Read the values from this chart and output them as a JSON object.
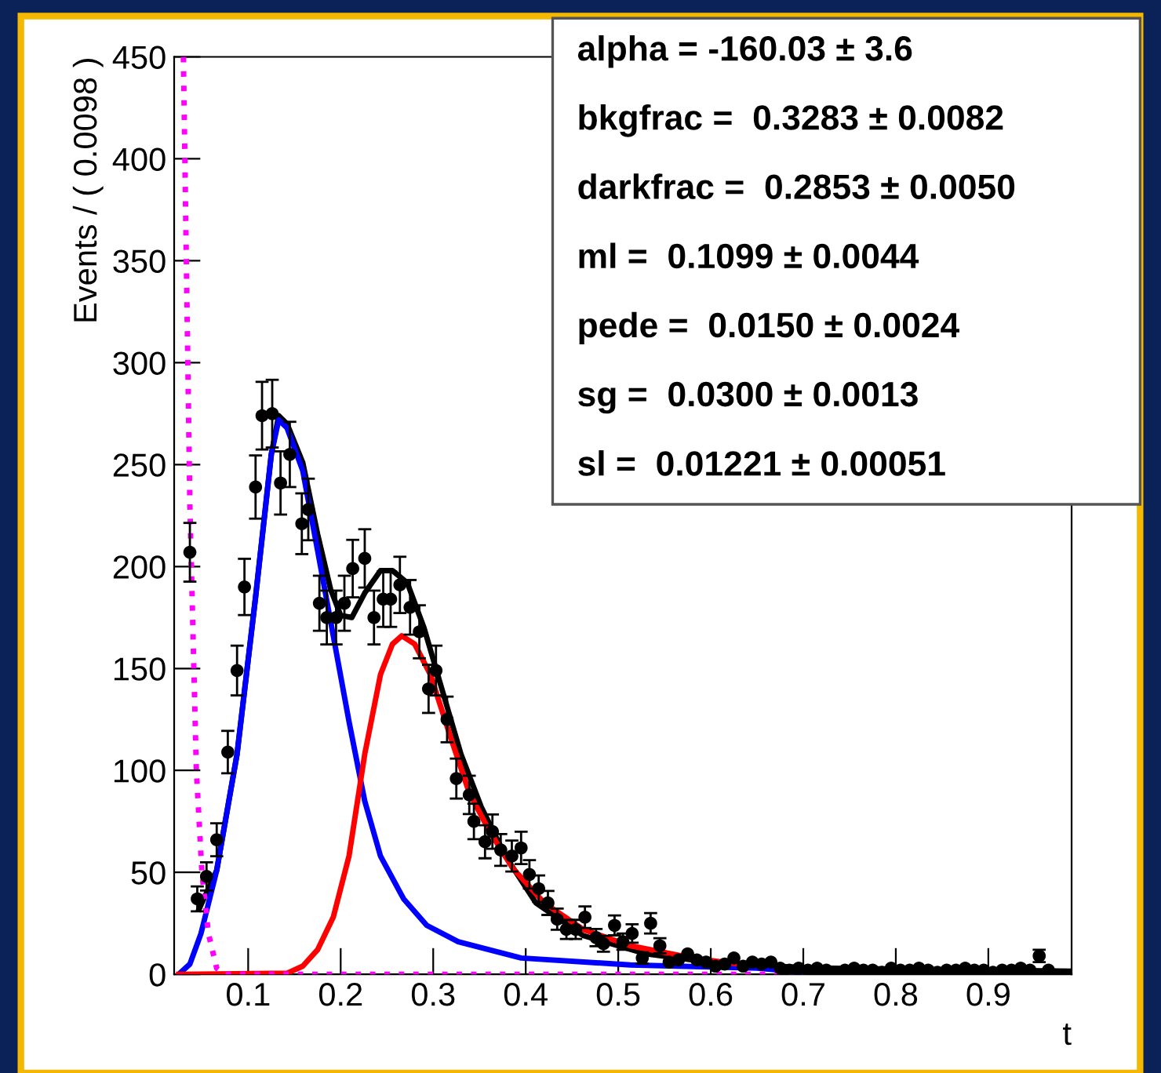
{
  "chart_data": {
    "type": "scatter",
    "xlabel": "t",
    "ylabel": "Events / ( 0.0098 )",
    "xlim": [
      0.02,
      0.99
    ],
    "ylim": [
      0,
      450
    ],
    "xticks": [
      0.1,
      0.2,
      0.3,
      0.4,
      0.5,
      0.6,
      0.7,
      0.8,
      0.9
    ],
    "yticks": [
      0,
      50,
      100,
      150,
      200,
      250,
      300,
      350,
      400,
      450
    ],
    "grid": false,
    "legend": false,
    "series": [
      {
        "type": "scatter",
        "color": "#000000",
        "marker": "circle",
        "x": [
          0.037,
          0.045,
          0.055,
          0.066,
          0.078,
          0.088,
          0.096,
          0.108,
          0.115,
          0.126,
          0.135,
          0.145,
          0.158,
          0.165,
          0.177,
          0.185,
          0.195,
          0.204,
          0.213,
          0.226,
          0.236,
          0.246,
          0.254,
          0.264,
          0.275,
          0.285,
          0.295,
          0.303,
          0.315,
          0.325,
          0.339,
          0.344,
          0.356,
          0.364,
          0.373,
          0.385,
          0.395,
          0.404,
          0.414,
          0.424,
          0.434,
          0.444,
          0.454,
          0.464,
          0.476,
          0.484,
          0.496,
          0.505,
          0.515,
          0.526,
          0.535,
          0.545,
          0.555,
          0.565,
          0.575,
          0.585,
          0.595,
          0.605,
          0.615,
          0.625,
          0.635,
          0.645,
          0.655,
          0.665,
          0.675,
          0.685,
          0.695,
          0.705,
          0.715,
          0.725,
          0.735,
          0.745,
          0.755,
          0.765,
          0.775,
          0.785,
          0.795,
          0.805,
          0.815,
          0.825,
          0.835,
          0.845,
          0.855,
          0.865,
          0.875,
          0.885,
          0.895,
          0.905,
          0.915,
          0.925,
          0.935,
          0.945,
          0.955,
          0.965
        ],
        "values": [
          207,
          37,
          48,
          66,
          109,
          149,
          190,
          239,
          274,
          275,
          241,
          255,
          221,
          228,
          182,
          175,
          175,
          182,
          199,
          204,
          175,
          184,
          184,
          191,
          180,
          168,
          140,
          149,
          125,
          96,
          88,
          75,
          65,
          70,
          61,
          58,
          62,
          49,
          42,
          35,
          27,
          22,
          22,
          28,
          18,
          15,
          24,
          16,
          20,
          8,
          25,
          14,
          6,
          7,
          10,
          7,
          6,
          4,
          5,
          8,
          4,
          6,
          5,
          6,
          3,
          2,
          3,
          2,
          3,
          2,
          1,
          2,
          3,
          2,
          2,
          1,
          3,
          2,
          2,
          3,
          2,
          1,
          2,
          2,
          3,
          2,
          2,
          1,
          2,
          2,
          3,
          2,
          9,
          2
        ],
        "errors": [
          14.4,
          6.1,
          6.9,
          8.1,
          10.4,
          12.2,
          13.8,
          15.5,
          16.6,
          16.6,
          15.5,
          16,
          14.9,
          15.1,
          13.5,
          13.2,
          13.2,
          13.5,
          14.1,
          14.3,
          13.2,
          13.6,
          13.6,
          13.8,
          13.4,
          13,
          11.8,
          12.2,
          11.2,
          9.8,
          9.4,
          8.7,
          8.1,
          8.4,
          7.8,
          7.6,
          7.9,
          7,
          6.5,
          5.9,
          5.2,
          4.7,
          4.7,
          5.3,
          4.2,
          3.9,
          4.9,
          4,
          4.5,
          2.8,
          5,
          3.7,
          null,
          null,
          null,
          null,
          null,
          null,
          null,
          null,
          null,
          null,
          null,
          null,
          null,
          null,
          null,
          null,
          null,
          null,
          null,
          null,
          null,
          null,
          null,
          null,
          null,
          null,
          null,
          null,
          null,
          null,
          null,
          null,
          null,
          null,
          null,
          null,
          null,
          null,
          null,
          null,
          3,
          null
        ]
      },
      {
        "type": "line",
        "color": "#000000",
        "line_style": "solid",
        "x": [
          0.047,
          0.066,
          0.088,
          0.108,
          0.125,
          0.133,
          0.142,
          0.159,
          0.175,
          0.189,
          0.2,
          0.212,
          0.226,
          0.243,
          0.256,
          0.272,
          0.29,
          0.31,
          0.33,
          0.352,
          0.378,
          0.411,
          0.462,
          0.53,
          0.614,
          0.715,
          0.99
        ],
        "values": [
          32,
          51,
          108,
          185,
          255,
          274,
          270,
          251,
          216,
          189,
          176,
          175,
          187,
          198,
          198,
          192,
          170,
          139,
          108,
          82,
          58,
          35,
          19,
          10,
          5,
          3,
          1.5
        ]
      },
      {
        "type": "line",
        "color": "#0000ff",
        "line_style": "solid",
        "x": [
          0.025,
          0.037,
          0.049,
          0.066,
          0.088,
          0.108,
          0.125,
          0.133,
          0.142,
          0.159,
          0.175,
          0.192,
          0.209,
          0.226,
          0.243,
          0.268,
          0.293,
          0.327,
          0.395,
          0.513,
          0.65,
          0.7
        ],
        "values": [
          0,
          5,
          20,
          51,
          108,
          185,
          255,
          272,
          268,
          247,
          208,
          166,
          124,
          85,
          58,
          37,
          24,
          16,
          8,
          4.6,
          3,
          1
        ]
      },
      {
        "type": "line",
        "color": "#ff0000",
        "line_style": "solid",
        "x": [
          0.025,
          0.142,
          0.159,
          0.175,
          0.192,
          0.209,
          0.226,
          0.243,
          0.256,
          0.266,
          0.28,
          0.297,
          0.319,
          0.339,
          0.361,
          0.386,
          0.42,
          0.462,
          0.513,
          0.58,
          0.63
        ],
        "values": [
          0,
          0.5,
          4,
          12,
          28,
          58,
          108,
          147,
          162,
          166,
          162,
          147,
          116,
          89,
          70,
          52,
          35,
          22,
          14,
          8,
          5
        ]
      },
      {
        "type": "line",
        "color": "#ff00ff",
        "line_style": "dotted",
        "x": [
          0.03,
          0.037,
          0.044,
          0.05,
          0.057,
          0.066,
          0.075,
          0.7
        ],
        "values": [
          450,
          230,
          100,
          50,
          20,
          3,
          0,
          0
        ]
      }
    ],
    "annotations": [
      "alpha = -160.03 ± 3.6",
      "bkgfrac =  0.3283 ± 0.0082",
      "darkfrac =  0.2853 ± 0.0050",
      "ml =  0.1099 ± 0.0044",
      "pede =  0.0150 ± 0.0024",
      "sg =  0.0300 ± 0.0013",
      "sl =  0.01221 ± 0.00051"
    ]
  }
}
